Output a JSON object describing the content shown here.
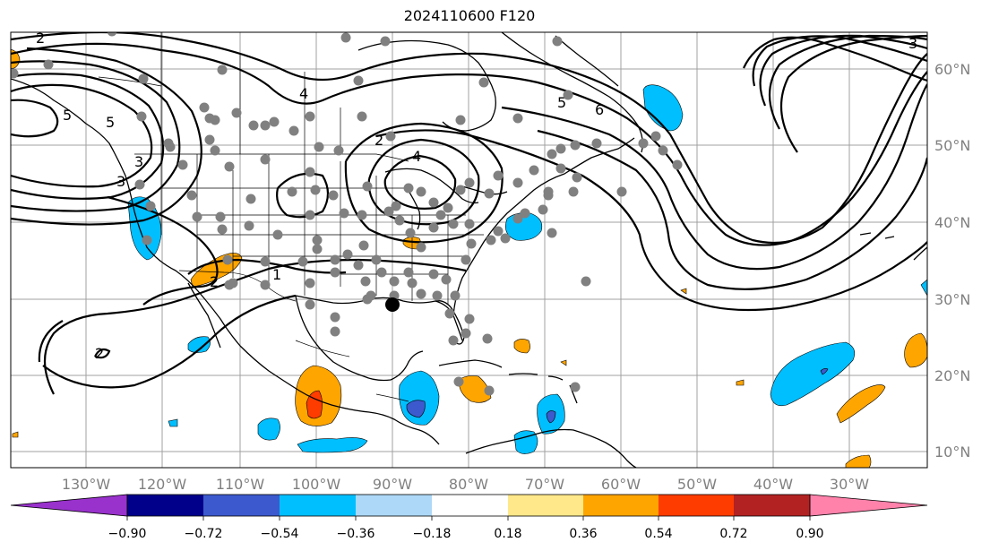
{
  "title": "2024110600 F120",
  "longitude_labels": [
    "130°W",
    "120°W",
    "110°W",
    "100°W",
    "90°W",
    "80°W",
    "70°W",
    "60°W",
    "50°W",
    "40°W",
    "30°W"
  ],
  "latitude_labels": [
    "60°N",
    "50°N",
    "40°N",
    "30°N",
    "20°N",
    "10°N"
  ],
  "colorbar": {
    "ticks": [
      "−0.90",
      "−0.72",
      "−0.54",
      "−0.36",
      "−0.18",
      "0.18",
      "0.36",
      "0.54",
      "0.72",
      "0.90"
    ],
    "colors": [
      "#9932cc",
      "#00008b",
      "#3c5acd",
      "#00bfff",
      "#add8f7",
      "#ffffff",
      "#ffe88a",
      "#ffa500",
      "#ff3c00",
      "#b22222",
      "#ff82ab"
    ]
  },
  "contour_labels": [
    "2",
    "4",
    "5",
    "6",
    "5",
    "3",
    "4",
    "5",
    "3",
    "2",
    "1",
    "2",
    "2",
    "3"
  ],
  "shading_colors": {
    "orange": "#ffa500",
    "blue": "#00bfff",
    "dark_blue": "#3c5acd",
    "red": "#ff3c00",
    "light_blue": "#add8f7",
    "yellow": "#ffe88a"
  },
  "station_dot_color": "#808080"
}
